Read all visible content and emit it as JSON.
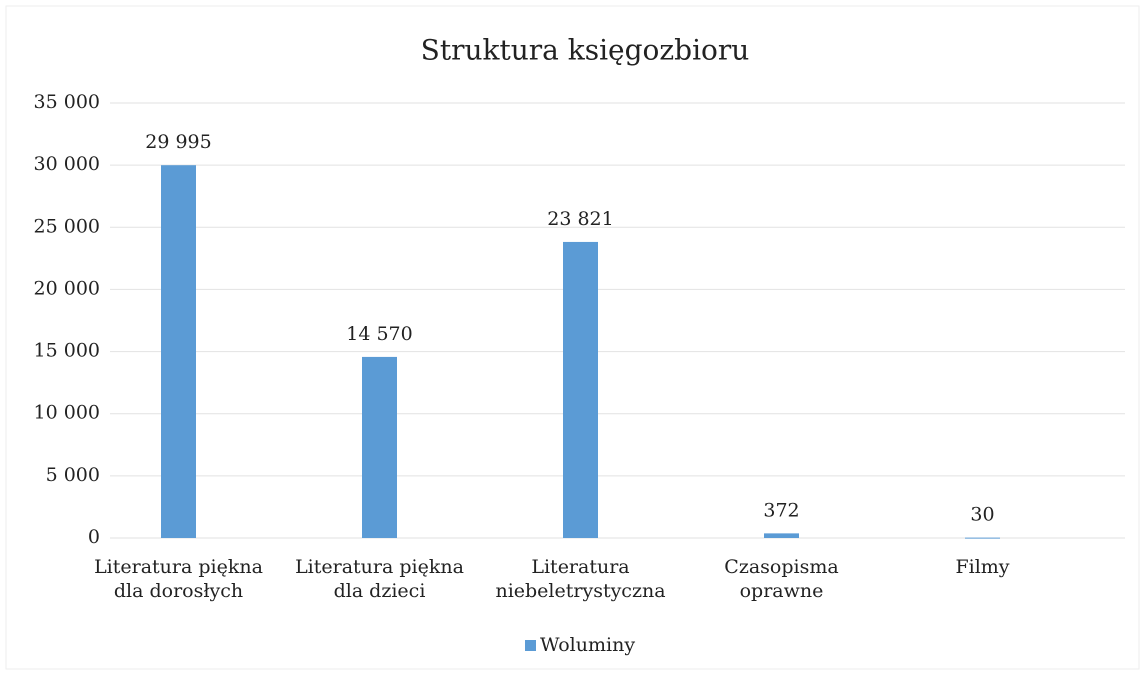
{
  "chart_data": {
    "type": "bar",
    "title": "Struktura księgozbioru",
    "categories": [
      "Literatura piękna\ndla dorosłych",
      "Literatura piękna\ndla dzieci",
      "Literatura\nniebeletrystyczna",
      "Czasopisma\noprawne",
      "Filmy"
    ],
    "series": [
      {
        "name": "Woluminy",
        "color": "#5b9bd5",
        "values": [
          29995,
          14570,
          23821,
          372,
          30
        ],
        "value_labels": [
          "29 995",
          "14 570",
          "23 821",
          "372",
          "30"
        ]
      }
    ],
    "ylim": [
      0,
      35000
    ],
    "yticks": [
      0,
      {
        "value": 5000,
        "label": "5 000"
      },
      {
        "value": 10000,
        "label": "10 000"
      },
      {
        "value": 15000,
        "label": "15 000"
      },
      {
        "value": 20000,
        "label": "20 000"
      },
      {
        "value": 25000,
        "label": "25 000"
      },
      {
        "value": 30000,
        "label": "30 000"
      },
      {
        "value": 35000,
        "label": "35 000"
      }
    ],
    "grid": true,
    "legend": "bottom"
  }
}
